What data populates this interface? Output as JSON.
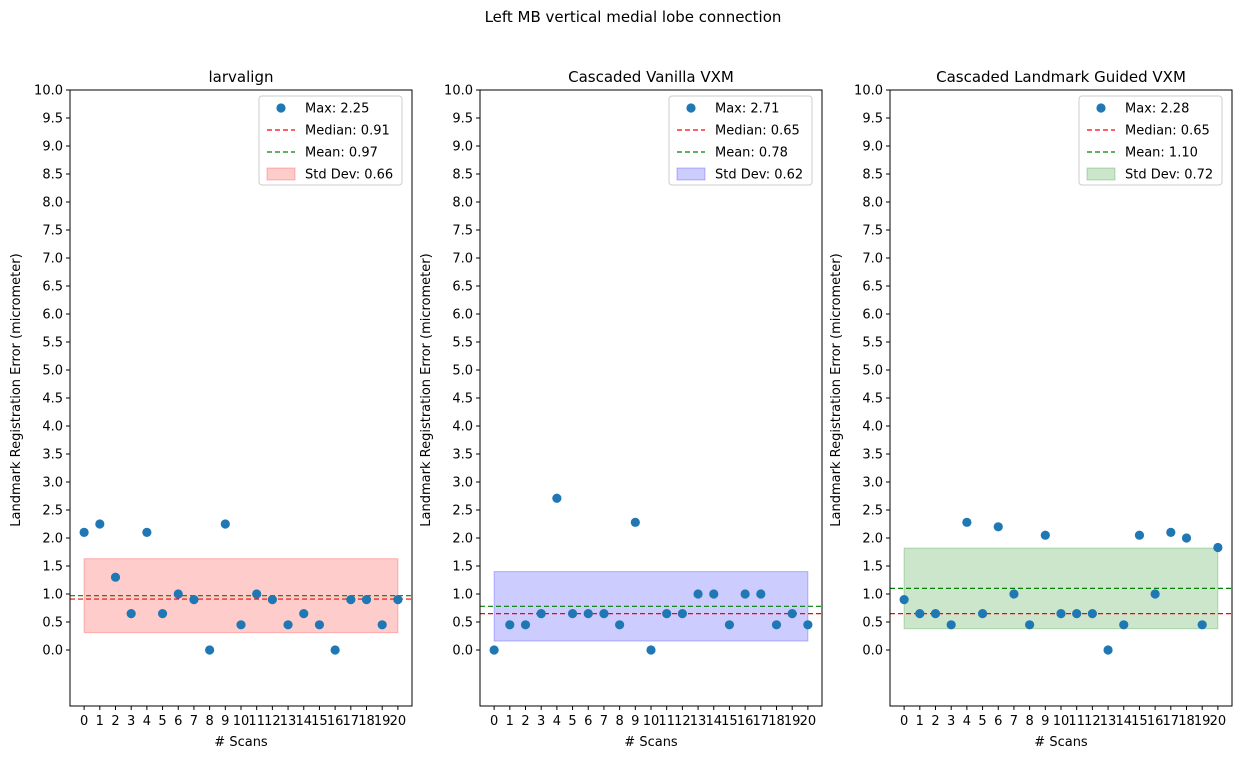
{
  "figure": {
    "suptitle": "Left MB vertical medial lobe connection"
  },
  "chart_data": [
    {
      "type": "scatter",
      "title": "larvalign",
      "xlabel": "# Scans",
      "ylabel": "Landmark Registration Error (micrometer)",
      "x": [
        0,
        1,
        2,
        3,
        4,
        5,
        6,
        7,
        8,
        9,
        10,
        11,
        12,
        13,
        14,
        15,
        16,
        17,
        18,
        19,
        20
      ],
      "y": [
        2.1,
        2.25,
        1.3,
        0.65,
        2.1,
        0.65,
        1.0,
        0.9,
        0.0,
        2.25,
        0.45,
        1.0,
        0.9,
        0.45,
        0.65,
        0.45,
        0.0,
        0.9,
        0.9,
        0.45,
        0.9
      ],
      "xticks": [
        "0",
        "1",
        "2",
        "3",
        "4",
        "5",
        "6",
        "7",
        "8",
        "9",
        "10",
        "11",
        "12",
        "13",
        "14",
        "15",
        "16",
        "17",
        "18",
        "19",
        "20"
      ],
      "yticks": [
        "0.0",
        "0.5",
        "1.0",
        "1.5",
        "2.0",
        "2.5",
        "3.0",
        "3.5",
        "4.0",
        "4.5",
        "5.0",
        "5.5",
        "6.0",
        "6.5",
        "7.0",
        "7.5",
        "8.0",
        "8.5",
        "9.0",
        "9.5",
        "10.0"
      ],
      "ylim": [
        -1.0,
        10.0
      ],
      "median": 0.91,
      "mean": 0.97,
      "std_dev": 0.66,
      "std_color": "#ff0000",
      "legend": {
        "placement": "top-right",
        "max_label": "Max: 2.25",
        "median_label": "Median: 0.91",
        "mean_label": "Mean: 0.97",
        "std_label": "Std Dev: 0.66"
      }
    },
    {
      "type": "scatter",
      "title": "Cascaded Vanilla VXM",
      "xlabel": "# Scans",
      "ylabel": "Landmark Registration Error (micrometer)",
      "x": [
        0,
        1,
        2,
        3,
        4,
        5,
        6,
        7,
        8,
        9,
        10,
        11,
        12,
        13,
        14,
        15,
        16,
        17,
        18,
        19,
        20
      ],
      "y": [
        0.0,
        0.45,
        0.45,
        0.65,
        2.71,
        0.65,
        0.65,
        0.65,
        0.45,
        2.28,
        0.0,
        0.65,
        0.65,
        1.0,
        1.0,
        0.45,
        1.0,
        1.0,
        0.45,
        0.65,
        0.45
      ],
      "xticks": [
        "0",
        "1",
        "2",
        "3",
        "4",
        "5",
        "6",
        "7",
        "8",
        "9",
        "10",
        "11",
        "12",
        "13",
        "14",
        "15",
        "16",
        "17",
        "18",
        "19",
        "20"
      ],
      "yticks": [
        "0.0",
        "0.5",
        "1.0",
        "1.5",
        "2.0",
        "2.5",
        "3.0",
        "3.5",
        "4.0",
        "4.5",
        "5.0",
        "5.5",
        "6.0",
        "6.5",
        "7.0",
        "7.5",
        "8.0",
        "8.5",
        "9.0",
        "9.5",
        "10.0"
      ],
      "ylim": [
        -1.0,
        10.0
      ],
      "median": 0.65,
      "mean": 0.78,
      "std_dev": 0.62,
      "std_color": "#0000ff",
      "legend": {
        "placement": "top-right",
        "max_label": "Max: 2.71",
        "median_label": "Median: 0.65",
        "mean_label": "Mean: 0.78",
        "std_label": "Std Dev: 0.62"
      }
    },
    {
      "type": "scatter",
      "title": "Cascaded Landmark Guided VXM",
      "xlabel": "# Scans",
      "ylabel": "Landmark Registration Error (micrometer)",
      "x": [
        0,
        1,
        2,
        3,
        4,
        5,
        6,
        7,
        8,
        9,
        10,
        11,
        12,
        13,
        14,
        15,
        16,
        17,
        18,
        19,
        20
      ],
      "y": [
        0.9,
        0.65,
        0.65,
        0.45,
        2.28,
        0.65,
        2.2,
        1.0,
        0.45,
        2.05,
        0.65,
        0.65,
        0.65,
        0.0,
        0.45,
        2.05,
        1.0,
        2.1,
        2.0,
        0.45,
        1.83
      ],
      "xticks": [
        "0",
        "1",
        "2",
        "3",
        "4",
        "5",
        "6",
        "7",
        "8",
        "9",
        "10",
        "11",
        "12",
        "13",
        "14",
        "15",
        "16",
        "17",
        "18",
        "19",
        "20"
      ],
      "yticks": [
        "0.0",
        "0.5",
        "1.0",
        "1.5",
        "2.0",
        "2.5",
        "3.0",
        "3.5",
        "4.0",
        "4.5",
        "5.0",
        "5.5",
        "6.0",
        "6.5",
        "7.0",
        "7.5",
        "8.0",
        "8.5",
        "9.0",
        "9.5",
        "10.0"
      ],
      "ylim": [
        -1.0,
        10.0
      ],
      "median": 0.65,
      "mean": 1.1,
      "std_dev": 0.72,
      "std_color": "#008000",
      "legend": {
        "placement": "top-right",
        "max_label": "Max: 2.28",
        "median_label": "Median: 0.65",
        "mean_label": "Mean: 1.10",
        "std_label": "Std Dev: 0.72"
      }
    }
  ],
  "colors": {
    "scatter": "#1f77b4",
    "median_line": "#ff0000",
    "mean_line": "#008000"
  }
}
